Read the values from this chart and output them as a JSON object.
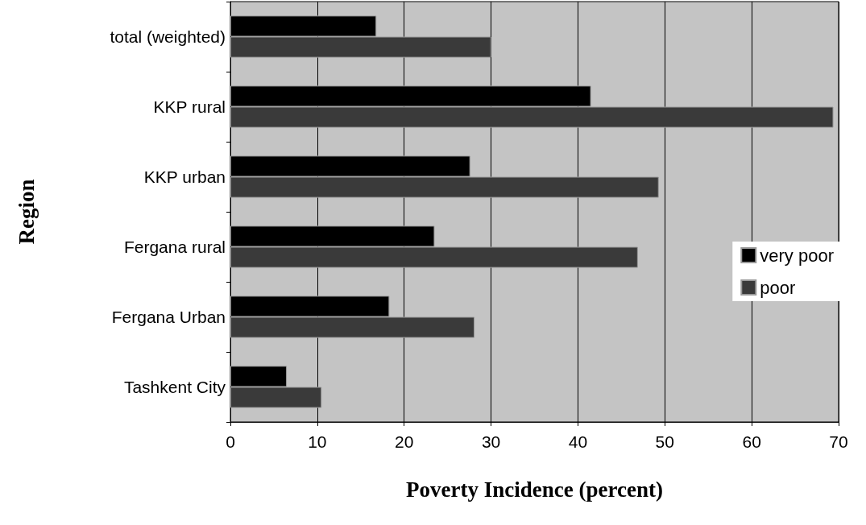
{
  "chart_data": {
    "type": "bar",
    "orientation": "horizontal",
    "xlabel": "Poverty Incidence (percent)",
    "ylabel": "Region",
    "categories": [
      "total (weighted)",
      "KKP rural",
      "KKP urban",
      "Fergana rural",
      "Fergana Urban",
      "Tashkent City"
    ],
    "series": [
      {
        "name": "very poor",
        "color": "#000000",
        "values": [
          16.8,
          41.5,
          27.6,
          23.5,
          18.3,
          6.5
        ]
      },
      {
        "name": "poor",
        "color": "#3a3a3a",
        "values": [
          30,
          69.4,
          49.3,
          46.9,
          28.1,
          10.5
        ]
      }
    ],
    "xlim": [
      0,
      70
    ],
    "xticks": [
      0,
      10,
      20,
      30,
      40,
      50,
      60,
      70
    ],
    "grid": "x",
    "legend": "right"
  }
}
